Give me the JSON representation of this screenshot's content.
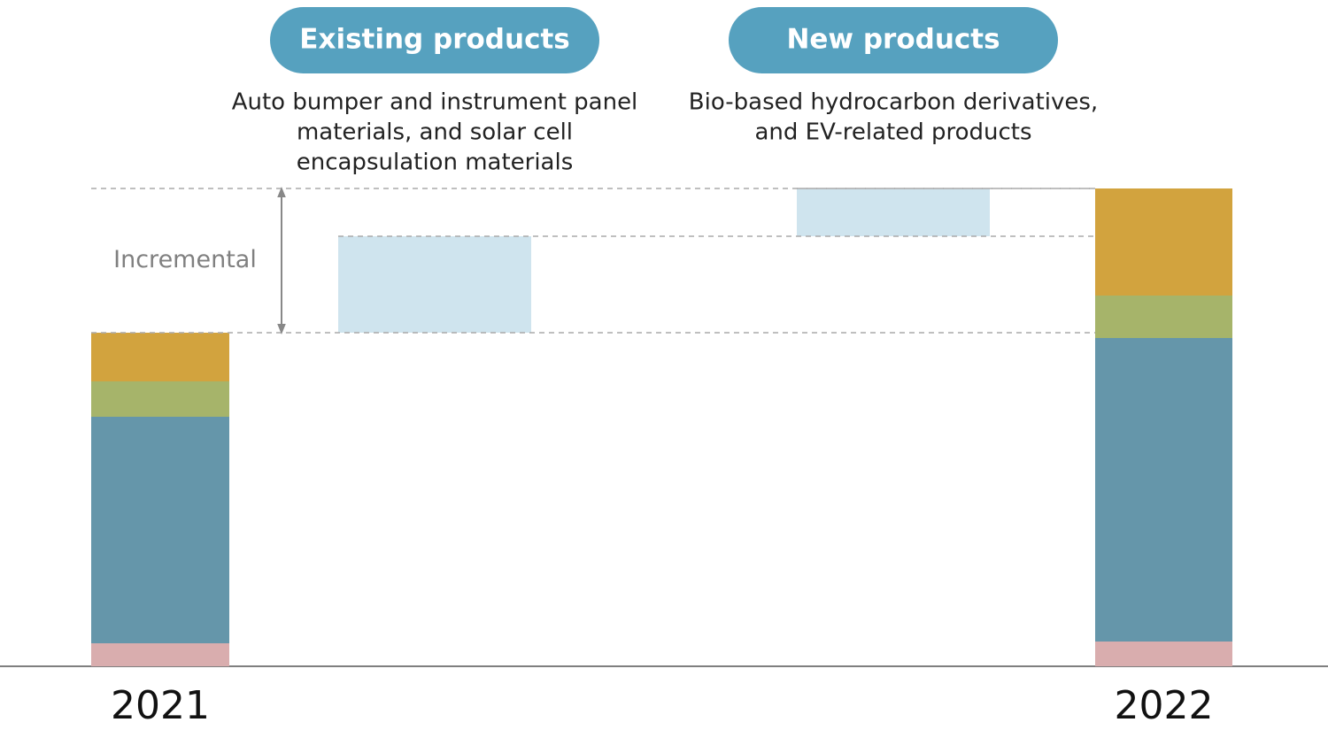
{
  "chart_data": {
    "type": "waterfall",
    "categories": [
      "2021",
      "Existing products",
      "New products",
      "2022"
    ],
    "descriptions": [
      null,
      [
        "Auto bumper and instrument panel",
        "materials, and solar cell",
        "encapsulation materials"
      ],
      [
        "Bio-based hydrocarbon derivatives,",
        "and EV-related products"
      ],
      null
    ],
    "annotation": "Incremental",
    "series": [
      {
        "color": "#d9adae",
        "values": [
          26,
          null,
          null,
          28
        ]
      },
      {
        "color": "#6596aa",
        "values": [
          256,
          null,
          null,
          343
        ]
      },
      {
        "color": "#a6b46a",
        "values": [
          40,
          null,
          null,
          48
        ]
      },
      {
        "color": "#d2a33e",
        "values": [
          55,
          null,
          null,
          121
        ]
      },
      {
        "color": "#cfe4ee",
        "values": [
          null,
          109,
          54,
          null
        ]
      }
    ],
    "ylim": [
      0,
      540
    ]
  }
}
